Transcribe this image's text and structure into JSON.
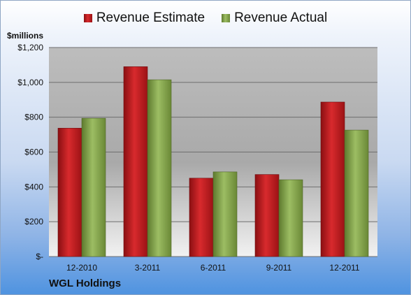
{
  "legend": {
    "estimate_label": "Revenue Estimate",
    "actual_label": "Revenue Actual"
  },
  "units_label": "$millions",
  "company_label": "WGL Holdings",
  "colors": {
    "estimate": "#c8191d",
    "actual": "#8fae55"
  },
  "chart_data": {
    "type": "bar",
    "categories": [
      "12-2010",
      "3-2011",
      "6-2011",
      "9-2011",
      "12-2011"
    ],
    "series": [
      {
        "name": "Revenue Estimate",
        "values": [
          737,
          1090,
          450,
          471,
          887
        ]
      },
      {
        "name": "Revenue Actual",
        "values": [
          794,
          1015,
          486,
          441,
          726
        ]
      }
    ],
    "ylim": [
      0,
      1200
    ],
    "yticks": [
      0,
      200,
      400,
      600,
      800,
      1000,
      1200
    ],
    "ytick_labels": [
      "$-",
      "$200",
      "$400",
      "$600",
      "$800",
      "$1,000",
      "$1,200"
    ],
    "ylabel": "$millions",
    "xlabel": "",
    "grid": true,
    "legend_position": "top"
  }
}
